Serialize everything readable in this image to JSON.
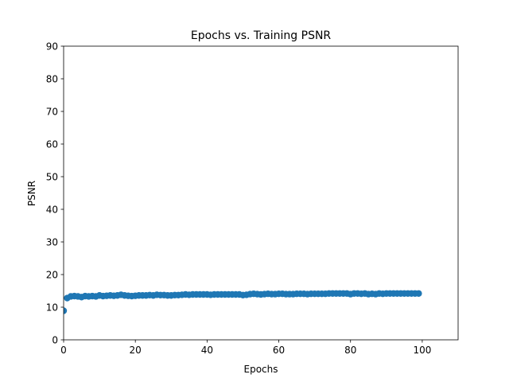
{
  "chart_data": {
    "type": "scatter",
    "title": "Epochs vs. Training PSNR",
    "xlabel": "Epochs",
    "ylabel": "PSNR",
    "xlim": [
      0,
      110
    ],
    "ylim": [
      0,
      90
    ],
    "xticks": [
      0,
      20,
      40,
      60,
      80,
      100
    ],
    "yticks": [
      0,
      10,
      20,
      30,
      40,
      50,
      60,
      70,
      80,
      90
    ],
    "grid": false,
    "legend": "none",
    "series": [
      {
        "color": "#1f77b4",
        "x": [
          0,
          1,
          2,
          3,
          4,
          5,
          6,
          7,
          8,
          9,
          10,
          11,
          12,
          13,
          14,
          15,
          16,
          17,
          18,
          19,
          20,
          21,
          22,
          23,
          24,
          25,
          26,
          27,
          28,
          29,
          30,
          31,
          32,
          33,
          34,
          35,
          36,
          37,
          38,
          39,
          40,
          41,
          42,
          43,
          44,
          45,
          46,
          47,
          48,
          49,
          50,
          51,
          52,
          53,
          54,
          55,
          56,
          57,
          58,
          59,
          60,
          61,
          62,
          63,
          64,
          65,
          66,
          67,
          68,
          69,
          70,
          71,
          72,
          73,
          74,
          75,
          76,
          77,
          78,
          79,
          80,
          81,
          82,
          83,
          84,
          85,
          86,
          87,
          88,
          89,
          90,
          91,
          92,
          93,
          94,
          95,
          96,
          97,
          98,
          99
        ],
        "y": [
          8.9,
          12.8,
          13.3,
          13.4,
          13.3,
          13.1,
          13.4,
          13.3,
          13.4,
          13.3,
          13.6,
          13.4,
          13.5,
          13.6,
          13.5,
          13.6,
          13.8,
          13.6,
          13.5,
          13.4,
          13.5,
          13.6,
          13.6,
          13.6,
          13.7,
          13.6,
          13.8,
          13.7,
          13.7,
          13.6,
          13.6,
          13.7,
          13.7,
          13.8,
          13.9,
          13.8,
          13.9,
          13.9,
          13.9,
          13.9,
          13.9,
          13.8,
          13.9,
          13.9,
          13.9,
          13.9,
          13.9,
          13.9,
          13.9,
          13.9,
          13.7,
          13.8,
          14.0,
          14.1,
          14.0,
          13.9,
          14.0,
          14.1,
          14.0,
          14.0,
          14.1,
          14.1,
          14.0,
          14.0,
          14.0,
          14.1,
          14.1,
          14.1,
          14.0,
          14.1,
          14.1,
          14.1,
          14.1,
          14.1,
          14.2,
          14.2,
          14.2,
          14.2,
          14.2,
          14.2,
          14.0,
          14.2,
          14.2,
          14.1,
          14.2,
          14.0,
          14.1,
          14.0,
          14.2,
          14.1,
          14.2,
          14.2,
          14.2,
          14.2,
          14.2,
          14.2,
          14.2,
          14.2,
          14.2,
          14.2
        ]
      }
    ]
  }
}
